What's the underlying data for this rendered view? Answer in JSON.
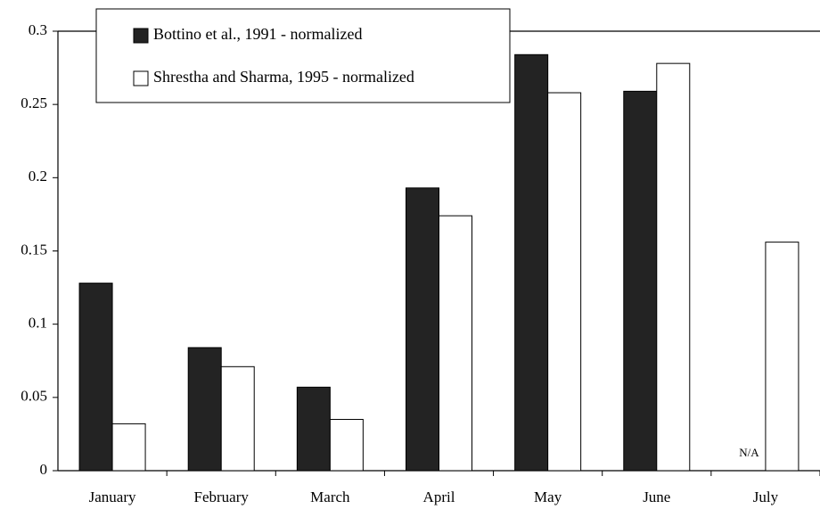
{
  "chart_data": {
    "type": "bar",
    "categories": [
      "January",
      "February",
      "March",
      "April",
      "May",
      "June",
      "July"
    ],
    "series": [
      {
        "name": "Bottino et al., 1991 - normalized",
        "color": "#232323",
        "values": [
          0.128,
          0.084,
          0.057,
          0.193,
          0.284,
          0.259,
          null
        ]
      },
      {
        "name": "Shrestha and Sharma, 1995 - normalized",
        "color": "#ffffff",
        "values": [
          0.032,
          0.071,
          0.035,
          0.174,
          0.258,
          0.278,
          0.156
        ]
      }
    ],
    "annotation": "N/A",
    "ylim": [
      0,
      0.3
    ],
    "yticks": [
      0,
      0.05,
      0.1,
      0.15,
      0.2,
      0.25,
      0.3
    ],
    "grid": false
  }
}
